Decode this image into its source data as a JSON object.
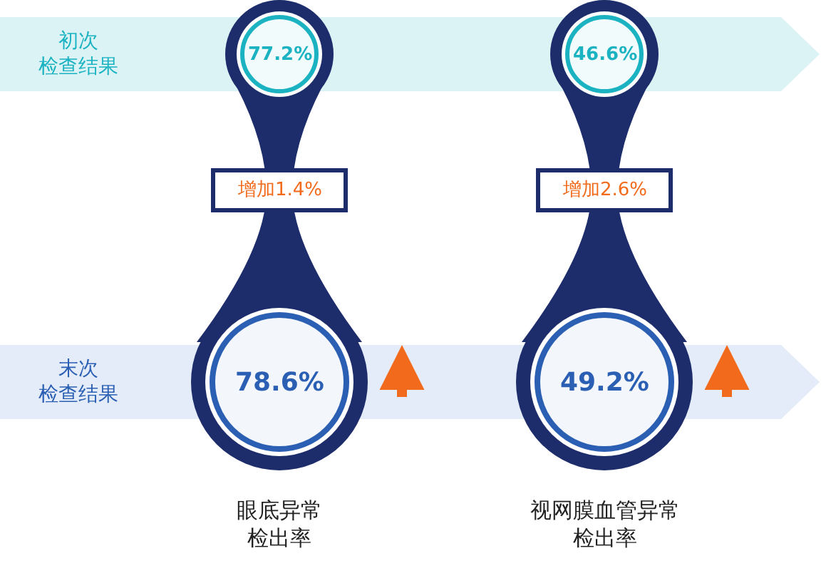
{
  "chart_data": {
    "type": "other",
    "categories": [
      "眼底异常检出率",
      "视网膜血管异常检出率"
    ],
    "series": [
      {
        "name": "初次检查结果",
        "color": "#1bb3c2",
        "values": [
          77.2,
          46.6
        ],
        "value_labels": [
          "77.2%",
          "46.6%"
        ]
      },
      {
        "name": "末次检查结果",
        "color": "#2b5fb4",
        "values": [
          78.6,
          49.2
        ],
        "value_labels": [
          "78.6%",
          "49.2%"
        ]
      }
    ],
    "annotations": [
      "增加1.4%",
      "增加2.6%"
    ]
  }
}
